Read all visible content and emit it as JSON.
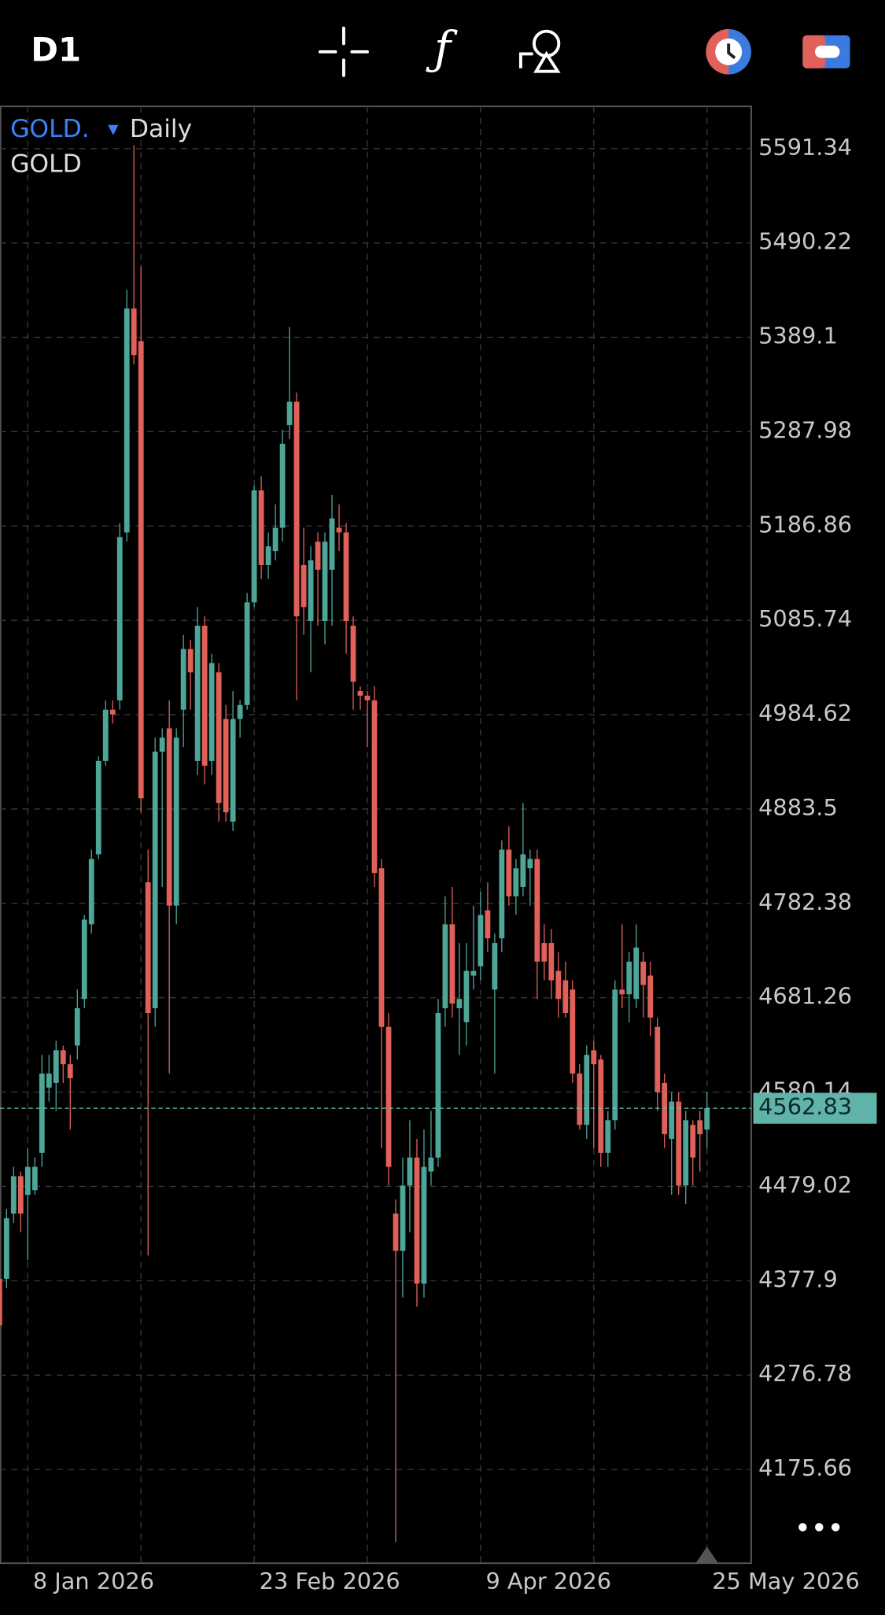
{
  "chart_data": {
    "type": "candlestick",
    "timeframe": "D1",
    "symbol": "GOLD.",
    "period": "Daily",
    "description": "GOLD",
    "up_color": "#4ea699",
    "down_color": "#e0615a",
    "ylim": [
      4075.25,
      5636.58
    ],
    "yticks": [
      4175.66,
      4276.78,
      4377.9,
      4479.02,
      4580.14,
      4681.26,
      4782.38,
      4883.5,
      4984.62,
      5085.74,
      5186.86,
      5287.98,
      5389.1,
      5490.22,
      5591.34
    ],
    "xticks": [
      {
        "value": 4,
        "label": "8 Jan 2026"
      },
      {
        "value": 36,
        "label": "23 Feb 2026"
      },
      {
        "value": 68,
        "label": "9 Apr 2026"
      },
      {
        "value": 100,
        "label": "25 May 2026"
      }
    ],
    "grid": true,
    "last_price": 4562.83,
    "open": [
      4380,
      4380,
      4450,
      4490,
      4470,
      4475,
      4515,
      4585,
      4590,
      4625,
      4610,
      4630,
      4680,
      4760,
      4835,
      4935,
      4990,
      5000,
      5180,
      5420,
      5385,
      4805,
      4670,
      4945,
      4970,
      4780,
      4990,
      5055,
      4935,
      5080,
      4935,
      5030,
      4980,
      4870,
      4980,
      4995,
      5105,
      5225,
      5145,
      5160,
      5185,
      5295,
      5320,
      5145,
      5085,
      5170,
      5085,
      5140,
      5185,
      5180,
      5080,
      5010,
      5005,
      5000,
      4820,
      4650,
      4450,
      4410,
      4480,
      4510,
      4375,
      4495,
      4510,
      4670,
      4760,
      4670,
      4655,
      4705,
      4715,
      4775,
      4690,
      4745,
      4840,
      4790,
      4800,
      4820,
      4830,
      4740,
      4740,
      4710,
      4700,
      4690,
      4600,
      4545,
      4625,
      4615,
      4515,
      4550,
      4690,
      4685,
      4680,
      4720,
      4705,
      4650,
      4590,
      4530,
      4570,
      4480,
      4545,
      4550,
      4540
    ],
    "high": [
      4390,
      4455,
      4500,
      4495,
      4520,
      4510,
      4620,
      4620,
      4635,
      4630,
      4620,
      4690,
      4770,
      4840,
      4940,
      5000,
      5000,
      5190,
      5440,
      5595,
      5465,
      4840,
      4960,
      4970,
      5000,
      4970,
      5070,
      5065,
      5100,
      5090,
      5050,
      5040,
      4995,
      5010,
      5000,
      5115,
      5230,
      5240,
      5180,
      5210,
      5290,
      5400,
      5330,
      5185,
      5165,
      5180,
      5180,
      5220,
      5210,
      5190,
      5090,
      5015,
      5010,
      5015,
      4830,
      4665,
      4465,
      4510,
      4550,
      4530,
      4540,
      4560,
      4680,
      4790,
      4800,
      4740,
      4740,
      4780,
      4795,
      4805,
      4750,
      4850,
      4865,
      4830,
      4890,
      4840,
      4840,
      4760,
      4755,
      4730,
      4720,
      4700,
      4610,
      4630,
      4635,
      4620,
      4560,
      4700,
      4760,
      4730,
      4760,
      4730,
      4720,
      4660,
      4600,
      4580,
      4580,
      4560,
      4550,
      4560,
      4580
    ],
    "low": [
      4325,
      4370,
      4440,
      4430,
      4400,
      4470,
      4500,
      4570,
      4560,
      4590,
      4540,
      4615,
      4670,
      4750,
      4830,
      4930,
      4975,
      4990,
      5170,
      5360,
      4880,
      4405,
      4650,
      4800,
      4600,
      4760,
      4950,
      4990,
      4920,
      4910,
      4920,
      4870,
      4870,
      4860,
      4960,
      4990,
      5100,
      5130,
      5130,
      5150,
      5170,
      5280,
      5000,
      5070,
      5030,
      5080,
      5060,
      5080,
      5160,
      5050,
      4990,
      4990,
      4950,
      4800,
      4520,
      4480,
      4098,
      4360,
      4430,
      4350,
      4360,
      4480,
      4500,
      4650,
      4660,
      4620,
      4630,
      4690,
      4700,
      4730,
      4600,
      4730,
      4780,
      4770,
      4790,
      4780,
      4680,
      4700,
      4680,
      4660,
      4660,
      4590,
      4540,
      4530,
      4520,
      4500,
      4500,
      4540,
      4670,
      4655,
      4670,
      4660,
      4640,
      4560,
      4520,
      4470,
      4470,
      4460,
      4480,
      4495,
      4520
    ],
    "close": [
      4330,
      4445,
      4490,
      4450,
      4500,
      4500,
      4600,
      4600,
      4625,
      4610,
      4595,
      4670,
      4765,
      4830,
      4935,
      4990,
      4985,
      5175,
      5420,
      5370,
      4895,
      4665,
      4945,
      4960,
      4780,
      4960,
      5055,
      5030,
      5080,
      4930,
      5040,
      4890,
      4880,
      4980,
      4995,
      5105,
      5225,
      5145,
      5165,
      5185,
      5275,
      5320,
      5090,
      5100,
      5150,
      5140,
      5170,
      5195,
      5180,
      5085,
      5020,
      5005,
      5000,
      4815,
      4650,
      4500,
      4410,
      4480,
      4510,
      4375,
      4500,
      4510,
      4665,
      4760,
      4675,
      4680,
      4710,
      4710,
      4770,
      4745,
      4740,
      4840,
      4790,
      4820,
      4835,
      4830,
      4720,
      4720,
      4700,
      4680,
      4665,
      4600,
      4545,
      4620,
      4610,
      4515,
      4550,
      4690,
      4685,
      4720,
      4735,
      4695,
      4660,
      4580,
      4535,
      4570,
      4480,
      4550,
      4510,
      4535,
      4562.83
    ]
  }
}
